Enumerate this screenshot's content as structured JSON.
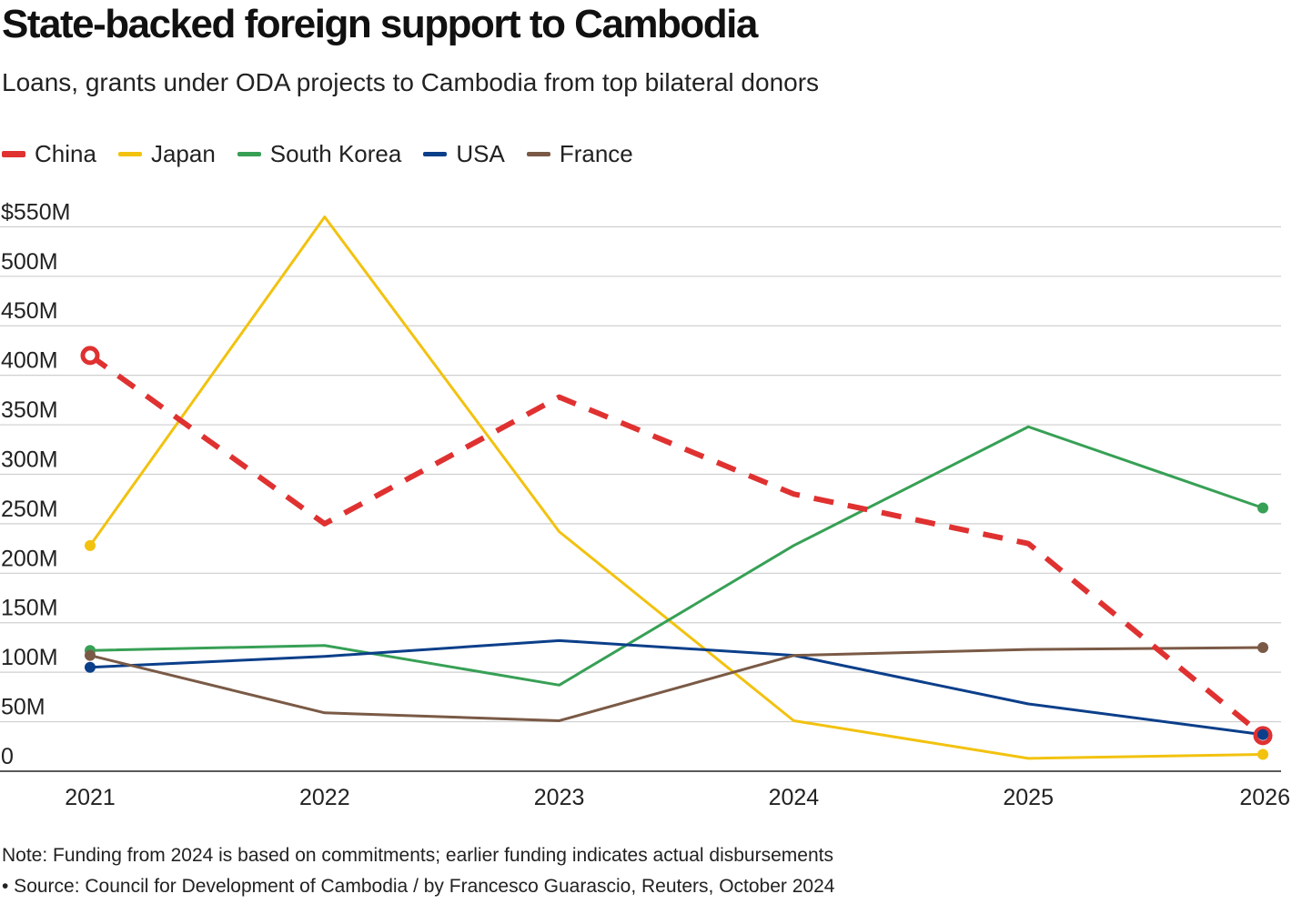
{
  "title": "State-backed foreign support to Cambodia",
  "subtitle": "Loans, grants under ODA projects to Cambodia from top bilateral donors",
  "note": "Note: Funding from 2024 is based on commitments; earlier funding indicates actual disbursements",
  "source": "• Source: Council for Development of Cambodia / by Francesco Guarascio, Reuters, October 2024",
  "chart_data": {
    "type": "line",
    "title": "State-backed foreign support to Cambodia",
    "xlabel": "",
    "ylabel": "",
    "x": [
      "2021",
      "2022",
      "2023",
      "2024",
      "2025",
      "2026"
    ],
    "ylim": [
      0,
      570
    ],
    "y_ticks": [
      0,
      50,
      100,
      150,
      200,
      250,
      300,
      350,
      400,
      450,
      500,
      550
    ],
    "y_tick_labels": [
      "0",
      "50M",
      "100M",
      "150M",
      "200M",
      "250M",
      "300M",
      "350M",
      "400M",
      "450M",
      "500M",
      "$550M"
    ],
    "grid": true,
    "legend_position": "top-left",
    "series": [
      {
        "name": "China",
        "color": "#e03131",
        "dashed": true,
        "values": [
          420,
          250,
          378,
          280,
          230,
          36
        ]
      },
      {
        "name": "Japan",
        "color": "#f2c20f",
        "dashed": false,
        "values": [
          228,
          560,
          242,
          51,
          13,
          17
        ]
      },
      {
        "name": "South Korea",
        "color": "#37a055",
        "dashed": false,
        "values": [
          122,
          127,
          87,
          228,
          348,
          266
        ]
      },
      {
        "name": "USA",
        "color": "#0b3f8a",
        "dashed": false,
        "values": [
          105,
          116,
          132,
          117,
          68,
          37
        ]
      },
      {
        "name": "France",
        "color": "#7a5a46",
        "dashed": false,
        "values": [
          117,
          59,
          51,
          117,
          123,
          125
        ]
      }
    ]
  }
}
